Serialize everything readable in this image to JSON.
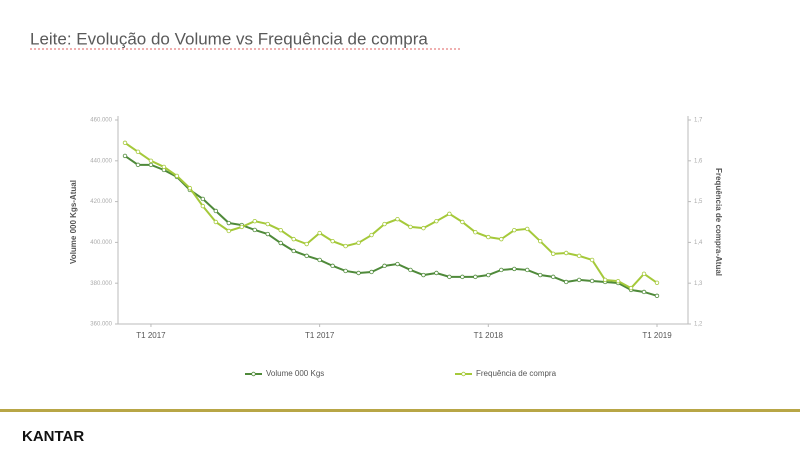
{
  "chart_data": {
    "type": "line",
    "title": "Leite: Evolução do Volume vs Frequência de compra",
    "ylabel": "Volume 000 Kgs-Atual",
    "y2label": "Frequência de compra-Atual",
    "categories": [
      null,
      null,
      "T1 2017",
      null,
      null,
      null,
      null,
      null,
      null,
      null,
      null,
      null,
      null,
      null,
      null,
      "T1 2017",
      null,
      null,
      null,
      null,
      null,
      null,
      null,
      null,
      null,
      null,
      null,
      null,
      "T1 2018",
      null,
      null,
      null,
      null,
      null,
      null,
      null,
      null,
      null,
      null,
      null,
      null,
      "T1 2019"
    ],
    "series": [
      {
        "name": "Volume 000 Kgs",
        "color": "#4f8a3a",
        "values": [
          442400,
          438000,
          438000,
          435500,
          432100,
          425700,
          421300,
          415400,
          409500,
          408500,
          406100,
          404100,
          399700,
          395800,
          393400,
          391400,
          388500,
          386000,
          385000,
          385500,
          388500,
          389400,
          386500,
          384000,
          385000,
          383100,
          383100,
          383100,
          384000,
          386500,
          387000,
          386500,
          384000,
          383100,
          380600,
          381600,
          381100,
          380600,
          380100,
          376700,
          375700,
          373800
        ]
      },
      {
        "name": "Frequência de compra",
        "color": "#a5c93a",
        "axis": "y2",
        "values": [
          1.644,
          1.622,
          1.6,
          1.585,
          1.563,
          1.533,
          1.489,
          1.45,
          1.428,
          1.438,
          1.452,
          1.445,
          1.43,
          1.408,
          1.396,
          1.423,
          1.403,
          1.391,
          1.399,
          1.418,
          1.445,
          1.457,
          1.438,
          1.435,
          1.452,
          1.47,
          1.45,
          1.425,
          1.413,
          1.408,
          1.43,
          1.433,
          1.403,
          1.372,
          1.374,
          1.367,
          1.357,
          1.308,
          1.305,
          1.288,
          1.323,
          1.301
        ]
      }
    ],
    "ylim": [
      360000,
      460000
    ],
    "yticks": [
      {
        "value": 360000,
        "label": "360.000"
      },
      {
        "value": 380000,
        "label": "380.000"
      },
      {
        "value": 400000,
        "label": "400.000"
      },
      {
        "value": 420000,
        "label": "420.000"
      },
      {
        "value": 440000,
        "label": "440.000"
      },
      {
        "value": 460000,
        "label": "460.000"
      }
    ],
    "y2lim": [
      1.2,
      1.7
    ],
    "y2ticks": [
      {
        "value": 1.2,
        "label": "1,2"
      },
      {
        "value": 1.3,
        "label": "1,3"
      },
      {
        "value": 1.4,
        "label": "1,4"
      },
      {
        "value": 1.5,
        "label": "1,5"
      },
      {
        "value": 1.6,
        "label": "1,6"
      },
      {
        "value": 1.7,
        "label": "1,7"
      }
    ],
    "legend": "bottom"
  },
  "brand": "KANTAR"
}
